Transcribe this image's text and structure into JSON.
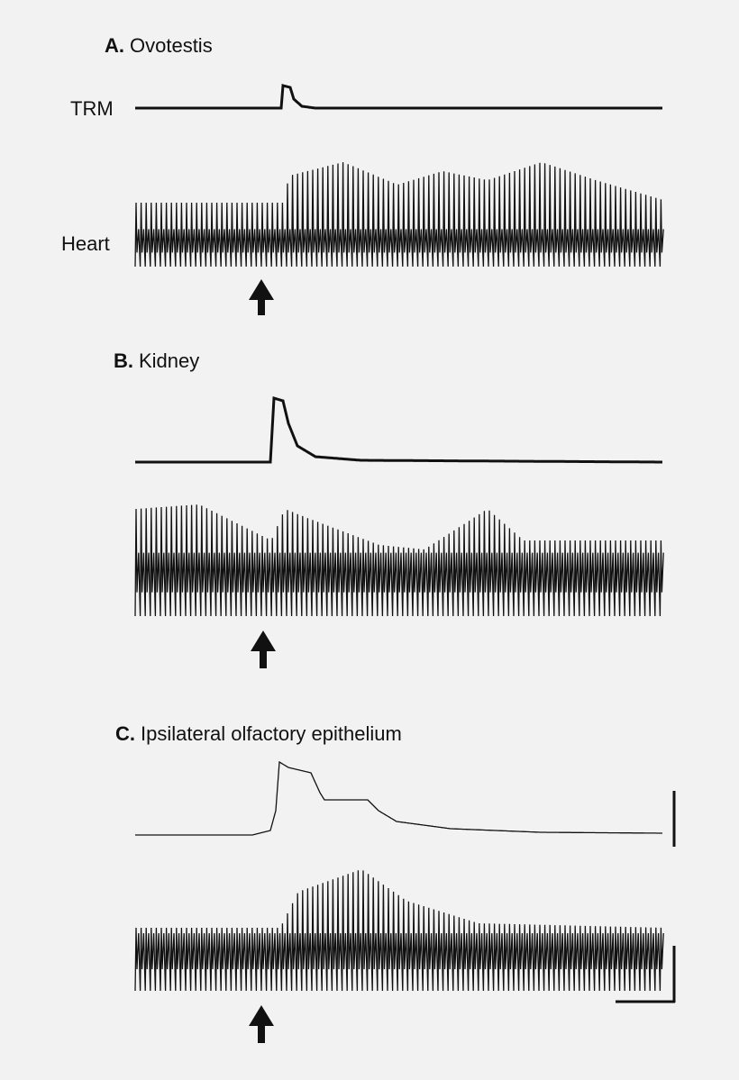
{
  "panels": [
    {
      "letter": "A.",
      "title": "Ovotestis",
      "trace_labels": [
        "TRM",
        "Heart"
      ]
    },
    {
      "letter": "B.",
      "title": "Kidney"
    },
    {
      "letter": "C.",
      "title": "Ipsilateral olfactory epithelium"
    }
  ]
}
